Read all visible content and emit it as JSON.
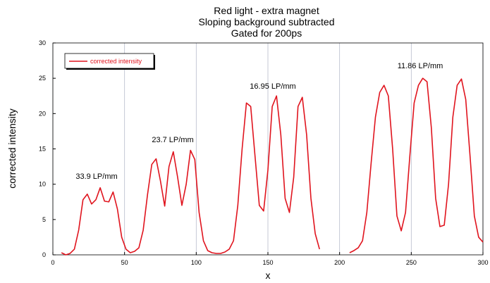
{
  "chart_data": {
    "type": "line",
    "title": [
      "Red light - extra magnet",
      "Sloping background subtracted",
      "Gated for 200ps"
    ],
    "xlabel": "x",
    "ylabel": "corrected intensity",
    "annotations": [
      "33.9 LP/mm",
      "23.7 LP/mm",
      "16.95 LP/mm",
      "11.86 LP/mm"
    ],
    "xlim": [
      0,
      300
    ],
    "ylim": [
      0,
      30
    ],
    "xticks": [
      0,
      50,
      100,
      150,
      200,
      250,
      300
    ],
    "yticks": [
      0,
      5,
      10,
      15,
      20,
      25,
      30
    ],
    "grid": "x",
    "legend": "upper left",
    "x": [
      6,
      9,
      12,
      15,
      18,
      21,
      24,
      27,
      30,
      33,
      36,
      39,
      42,
      45,
      48,
      51,
      54,
      57,
      60,
      63,
      66,
      69,
      72,
      75,
      78,
      81,
      84,
      87,
      90,
      93,
      96,
      99,
      102,
      105,
      108,
      111,
      114,
      117,
      120,
      123,
      126,
      129,
      132,
      135,
      138,
      141,
      144,
      147,
      150,
      153,
      156,
      159,
      162,
      165,
      168,
      171,
      174,
      177,
      180,
      183,
      186,
      189,
      192,
      195,
      198,
      201,
      204,
      207,
      210,
      213,
      216,
      219,
      222,
      225,
      228,
      231,
      234,
      237,
      240,
      243,
      246,
      249,
      252,
      255,
      258,
      261,
      264,
      267,
      270,
      273,
      276,
      279,
      282,
      285,
      288,
      291,
      294,
      297,
      300
    ],
    "series": [
      {
        "name": "corrected intensity",
        "color": "#e0141e",
        "values": [
          0.3,
          0,
          0.2,
          0.8,
          3.5,
          7.8,
          8.6,
          7.2,
          7.8,
          9.5,
          7.6,
          7.5,
          8.9,
          6.5,
          2.5,
          0.8,
          0.3,
          0.5,
          1.0,
          3.5,
          8.5,
          12.8,
          13.6,
          10.5,
          6.9,
          12.5,
          14.6,
          11.0,
          7.0,
          10.0,
          14.8,
          13.5,
          6.0,
          2.0,
          0.6,
          0.3,
          0.2,
          0.2,
          0.4,
          0.8,
          2.0,
          7.0,
          15.0,
          21.5,
          21.0,
          14.0,
          7.0,
          6.2,
          12.0,
          21.0,
          22.5,
          17.0,
          8.0,
          6.0,
          11.0,
          21.0,
          22.3,
          17.0,
          8.0,
          3.0,
          0.8,
          null,
          null,
          null,
          null,
          null,
          null,
          0.3,
          0.6,
          1.0,
          2.0,
          6.0,
          13.0,
          19.5,
          23.0,
          24.0,
          22.5,
          15.0,
          5.5,
          3.4,
          6.0,
          14.0,
          21.5,
          24.0,
          25.0,
          24.5,
          18.0,
          8.0,
          4.0,
          4.2,
          10.0,
          19.5,
          24.0,
          24.9,
          22.0,
          14.0,
          5.5,
          2.5,
          1.8
        ]
      }
    ]
  }
}
